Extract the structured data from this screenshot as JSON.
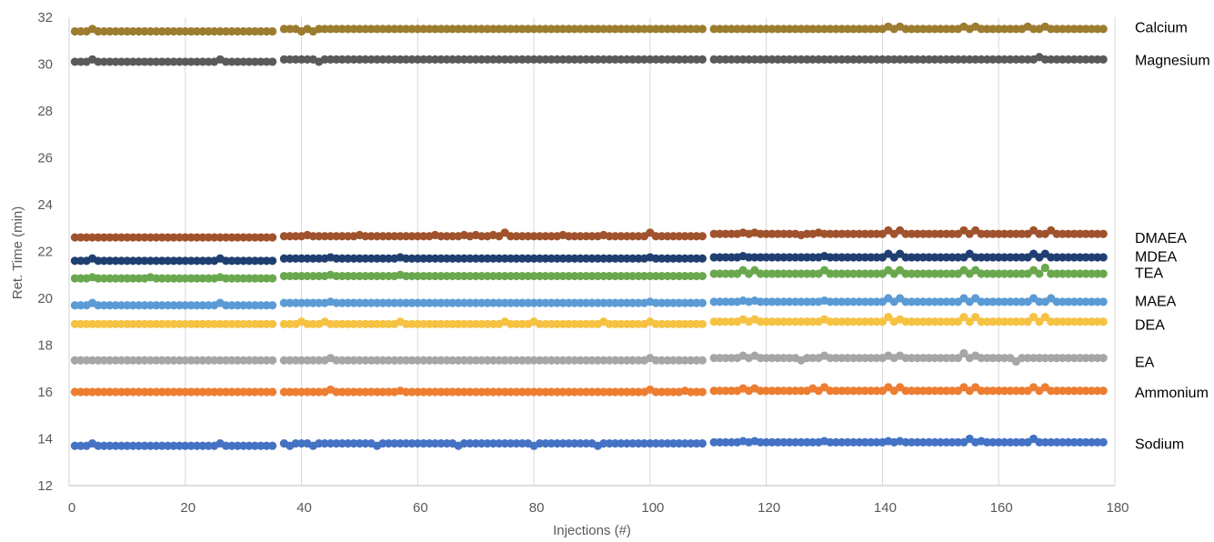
{
  "chart_data": {
    "type": "scatter",
    "title": "",
    "xlabel": "Injections (#)",
    "ylabel": "Ret. Time (min)",
    "xlim": [
      0,
      180
    ],
    "ylim": [
      12,
      32
    ],
    "x_ticks": [
      "0",
      "20",
      "40",
      "60",
      "80",
      "100",
      "120",
      "140",
      "160",
      "180"
    ],
    "y_ticks": [
      "12",
      "14",
      "16",
      "18",
      "20",
      "22",
      "24",
      "26",
      "28",
      "30",
      "32"
    ],
    "grid": "vertical",
    "legend": "labels-right",
    "injections": {
      "start": 1,
      "end": 178,
      "gaps": [
        36,
        110
      ]
    },
    "series": [
      {
        "name": "Calcium",
        "color": "#9C7C2E",
        "label_value": 31.6,
        "segments": [
          {
            "from": 1,
            "to": 35,
            "value": 31.4,
            "points": [
              [
                4,
                31.5
              ]
            ]
          },
          {
            "from": 37,
            "to": 109,
            "value": 31.5,
            "points": [
              [
                40,
                31.4
              ],
              [
                42,
                31.4
              ]
            ]
          },
          {
            "from": 111,
            "to": 178,
            "value": 31.5,
            "points": [
              [
                141,
                31.6
              ],
              [
                143,
                31.6
              ],
              [
                154,
                31.6
              ],
              [
                156,
                31.6
              ],
              [
                165,
                31.6
              ],
              [
                168,
                31.6
              ]
            ]
          }
        ]
      },
      {
        "name": "Magnesium",
        "color": "#5A5A5A",
        "label_value": 30.2,
        "segments": [
          {
            "from": 1,
            "to": 35,
            "value": 30.1,
            "points": [
              [
                4,
                30.2
              ],
              [
                26,
                30.2
              ]
            ]
          },
          {
            "from": 37,
            "to": 109,
            "value": 30.2,
            "points": [
              [
                43,
                30.1
              ]
            ]
          },
          {
            "from": 111,
            "to": 178,
            "value": 30.2,
            "points": [
              [
                167,
                30.3
              ]
            ]
          }
        ]
      },
      {
        "name": "DMAEA",
        "color": "#A0522D",
        "label_value": 22.6,
        "segments": [
          {
            "from": 1,
            "to": 35,
            "value": 22.6,
            "points": []
          },
          {
            "from": 37,
            "to": 109,
            "value": 22.65,
            "points": [
              [
                41,
                22.7
              ],
              [
                50,
                22.7
              ],
              [
                63,
                22.7
              ],
              [
                68,
                22.7
              ],
              [
                70,
                22.7
              ],
              [
                73,
                22.7
              ],
              [
                75,
                22.8
              ],
              [
                85,
                22.7
              ],
              [
                92,
                22.7
              ],
              [
                100,
                22.8
              ]
            ]
          },
          {
            "from": 111,
            "to": 178,
            "value": 22.75,
            "points": [
              [
                116,
                22.8
              ],
              [
                118,
                22.8
              ],
              [
                126,
                22.7
              ],
              [
                129,
                22.8
              ],
              [
                141,
                22.9
              ],
              [
                143,
                22.9
              ],
              [
                154,
                22.9
              ],
              [
                156,
                22.9
              ],
              [
                166,
                22.9
              ],
              [
                169,
                22.9
              ]
            ]
          }
        ]
      },
      {
        "name": "MDEA",
        "color": "#1F3F70",
        "label_value": 21.8,
        "segments": [
          {
            "from": 1,
            "to": 35,
            "value": 21.6,
            "points": [
              [
                4,
                21.7
              ],
              [
                26,
                21.7
              ]
            ]
          },
          {
            "from": 37,
            "to": 109,
            "value": 21.7,
            "points": [
              [
                45,
                21.75
              ],
              [
                57,
                21.75
              ],
              [
                100,
                21.75
              ]
            ]
          },
          {
            "from": 111,
            "to": 178,
            "value": 21.75,
            "points": [
              [
                116,
                21.8
              ],
              [
                130,
                21.8
              ],
              [
                141,
                21.9
              ],
              [
                143,
                21.9
              ],
              [
                155,
                21.9
              ],
              [
                166,
                21.9
              ],
              [
                168,
                21.9
              ]
            ]
          }
        ]
      },
      {
        "name": "TEA",
        "color": "#6AA84F",
        "label_value": 21.1,
        "segments": [
          {
            "from": 1,
            "to": 35,
            "value": 20.85,
            "points": [
              [
                4,
                20.9
              ],
              [
                14,
                20.9
              ],
              [
                26,
                20.9
              ]
            ]
          },
          {
            "from": 37,
            "to": 109,
            "value": 20.95,
            "points": [
              [
                45,
                21.0
              ],
              [
                57,
                21.0
              ]
            ]
          },
          {
            "from": 111,
            "to": 178,
            "value": 21.05,
            "points": [
              [
                116,
                21.2
              ],
              [
                118,
                21.2
              ],
              [
                130,
                21.2
              ],
              [
                141,
                21.2
              ],
              [
                143,
                21.2
              ],
              [
                154,
                21.2
              ],
              [
                156,
                21.2
              ],
              [
                166,
                21.2
              ],
              [
                168,
                21.3
              ]
            ]
          }
        ]
      },
      {
        "name": "MAEA",
        "color": "#5B9BD5",
        "label_value": 19.9,
        "segments": [
          {
            "from": 1,
            "to": 35,
            "value": 19.7,
            "points": [
              [
                4,
                19.8
              ],
              [
                26,
                19.8
              ]
            ]
          },
          {
            "from": 37,
            "to": 109,
            "value": 19.8,
            "points": [
              [
                45,
                19.85
              ],
              [
                100,
                19.85
              ]
            ]
          },
          {
            "from": 111,
            "to": 178,
            "value": 19.85,
            "points": [
              [
                116,
                19.9
              ],
              [
                118,
                19.9
              ],
              [
                130,
                19.9
              ],
              [
                141,
                20.0
              ],
              [
                143,
                20.0
              ],
              [
                154,
                20.0
              ],
              [
                156,
                20.0
              ],
              [
                166,
                20.0
              ],
              [
                169,
                20.0
              ]
            ]
          }
        ]
      },
      {
        "name": "DEA",
        "color": "#F5C242",
        "label_value": 18.9,
        "segments": [
          {
            "from": 1,
            "to": 35,
            "value": 18.9,
            "points": []
          },
          {
            "from": 37,
            "to": 109,
            "value": 18.9,
            "points": [
              [
                40,
                19.0
              ],
              [
                44,
                19.0
              ],
              [
                57,
                19.0
              ],
              [
                75,
                19.0
              ],
              [
                80,
                19.0
              ],
              [
                92,
                19.0
              ],
              [
                100,
                19.0
              ]
            ]
          },
          {
            "from": 111,
            "to": 178,
            "value": 19.0,
            "points": [
              [
                116,
                19.1
              ],
              [
                118,
                19.1
              ],
              [
                130,
                19.1
              ],
              [
                141,
                19.2
              ],
              [
                143,
                19.1
              ],
              [
                154,
                19.2
              ],
              [
                156,
                19.2
              ],
              [
                166,
                19.2
              ],
              [
                168,
                19.2
              ]
            ]
          }
        ]
      },
      {
        "name": "EA",
        "color": "#A6A6A6",
        "label_value": 17.3,
        "segments": [
          {
            "from": 1,
            "to": 35,
            "value": 17.35,
            "points": []
          },
          {
            "from": 37,
            "to": 109,
            "value": 17.35,
            "points": [
              [
                45,
                17.45
              ],
              [
                100,
                17.45
              ]
            ]
          },
          {
            "from": 111,
            "to": 178,
            "value": 17.45,
            "points": [
              [
                116,
                17.55
              ],
              [
                118,
                17.55
              ],
              [
                126,
                17.35
              ],
              [
                130,
                17.55
              ],
              [
                141,
                17.55
              ],
              [
                143,
                17.55
              ],
              [
                154,
                17.65
              ],
              [
                156,
                17.55
              ],
              [
                163,
                17.3
              ]
            ]
          }
        ]
      },
      {
        "name": "Ammonium",
        "color": "#ED7D31",
        "label_value": 16.0,
        "segments": [
          {
            "from": 1,
            "to": 35,
            "value": 16.0,
            "points": []
          },
          {
            "from": 37,
            "to": 109,
            "value": 16.0,
            "points": [
              [
                45,
                16.1
              ],
              [
                57,
                16.05
              ],
              [
                100,
                16.1
              ],
              [
                106,
                16.05
              ]
            ]
          },
          {
            "from": 111,
            "to": 178,
            "value": 16.05,
            "points": [
              [
                116,
                16.15
              ],
              [
                118,
                16.15
              ],
              [
                128,
                16.15
              ],
              [
                130,
                16.2
              ],
              [
                141,
                16.2
              ],
              [
                143,
                16.2
              ],
              [
                154,
                16.2
              ],
              [
                156,
                16.2
              ],
              [
                166,
                16.2
              ],
              [
                168,
                16.2
              ]
            ]
          }
        ]
      },
      {
        "name": "Sodium",
        "color": "#4472C4",
        "label_value": 13.8,
        "segments": [
          {
            "from": 1,
            "to": 35,
            "value": 13.7,
            "points": [
              [
                4,
                13.8
              ],
              [
                26,
                13.8
              ]
            ]
          },
          {
            "from": 37,
            "to": 109,
            "value": 13.8,
            "points": [
              [
                38,
                13.7
              ],
              [
                40,
                13.8
              ],
              [
                42,
                13.7
              ],
              [
                53,
                13.7
              ],
              [
                67,
                13.7
              ],
              [
                80,
                13.7
              ],
              [
                91,
                13.7
              ]
            ]
          },
          {
            "from": 111,
            "to": 178,
            "value": 13.85,
            "points": [
              [
                116,
                13.9
              ],
              [
                118,
                13.9
              ],
              [
                130,
                13.9
              ],
              [
                141,
                13.9
              ],
              [
                143,
                13.9
              ],
              [
                155,
                14.0
              ],
              [
                157,
                13.9
              ],
              [
                166,
                14.0
              ]
            ]
          }
        ]
      }
    ]
  }
}
